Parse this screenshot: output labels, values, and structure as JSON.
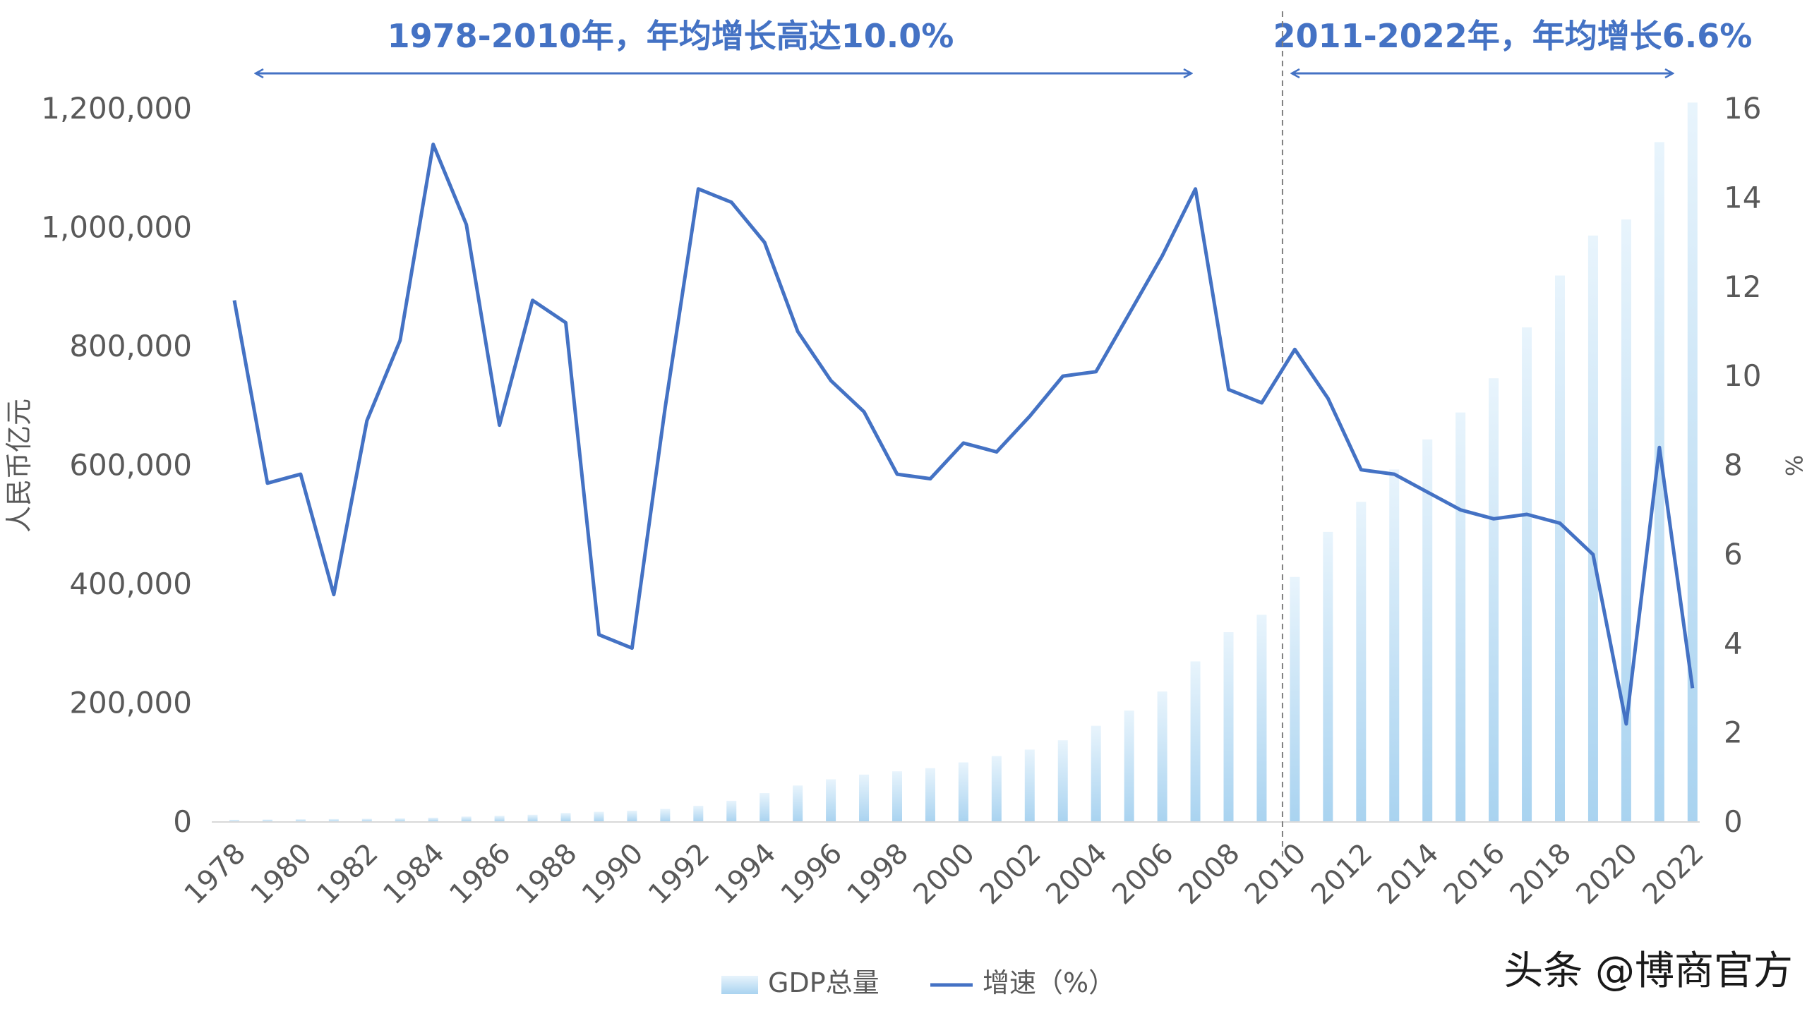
{
  "annotations": {
    "left": "1978-2010年，年均增长高达10.0%",
    "right": "2011-2022年，年均增长6.6%"
  },
  "watermark": "头条 @博商官方",
  "colors": {
    "line": "#4472c4",
    "bar_top": "#d6eaf8",
    "bar_bottom": "#a9d3f0",
    "annotation": "#4472c4",
    "divider": "#7f7f7f",
    "text": "#595959"
  },
  "chart_data": {
    "type": "bar+line",
    "categories": [
      "1978",
      "1979",
      "1980",
      "1981",
      "1982",
      "1983",
      "1984",
      "1985",
      "1986",
      "1987",
      "1988",
      "1989",
      "1990",
      "1991",
      "1992",
      "1993",
      "1994",
      "1995",
      "1996",
      "1997",
      "1998",
      "1999",
      "2000",
      "2001",
      "2002",
      "2003",
      "2004",
      "2005",
      "2006",
      "2007",
      "2008",
      "2009",
      "2010",
      "2011",
      "2012",
      "2013",
      "2014",
      "2015",
      "2016",
      "2017",
      "2018",
      "2019",
      "2020",
      "2021",
      "2022"
    ],
    "x_tick_labels": [
      "1978",
      "1980",
      "1982",
      "1984",
      "1986",
      "1988",
      "1990",
      "1992",
      "1994",
      "1996",
      "1998",
      "2000",
      "2002",
      "2004",
      "2006",
      "2008",
      "2010",
      "2012",
      "2014",
      "2016",
      "2018",
      "2020",
      "2022"
    ],
    "series": [
      {
        "name": "GDP总量",
        "type": "bar",
        "axis": "left",
        "values": [
          3679,
          4101,
          4588,
          4936,
          5373,
          6021,
          7279,
          9099,
          10376,
          12175,
          15180,
          17180,
          18873,
          22006,
          27195,
          35673,
          48638,
          61340,
          71814,
          79715,
          85196,
          90564,
          100280,
          110863,
          121717,
          137422,
          161840,
          187319,
          219438,
          270092,
          319245,
          348518,
          412119,
          487940,
          538580,
          592963,
          643563,
          688858,
          746395,
          832036,
          919281,
          986515,
          1013567,
          1143670,
          1210207
        ]
      },
      {
        "name": "增速（%）",
        "type": "line",
        "axis": "right",
        "values": [
          11.7,
          7.6,
          7.8,
          5.1,
          9.0,
          10.8,
          15.2,
          13.4,
          8.9,
          11.7,
          11.2,
          4.2,
          3.9,
          9.3,
          14.2,
          13.9,
          13.0,
          11.0,
          9.9,
          9.2,
          7.8,
          7.7,
          8.5,
          8.3,
          9.1,
          10.0,
          10.1,
          11.4,
          12.7,
          14.2,
          9.7,
          9.4,
          10.6,
          9.5,
          7.9,
          7.8,
          7.4,
          7.0,
          6.8,
          6.9,
          6.7,
          6.0,
          2.2,
          8.4,
          3.0
        ]
      }
    ],
    "y_left": {
      "label": "人民币亿元",
      "ticks": [
        "0",
        "200,000",
        "400,000",
        "600,000",
        "800,000",
        "1,000,000",
        "1,200,000"
      ],
      "ylim": [
        0,
        1200000
      ]
    },
    "y_right": {
      "label": "%",
      "ticks": [
        "0",
        "2",
        "4",
        "6",
        "8",
        "10",
        "12",
        "14",
        "16"
      ],
      "ylim": [
        0,
        16
      ]
    },
    "divider_between": [
      "2009",
      "2010"
    ],
    "legend": [
      "GDP总量",
      "增速（%）"
    ],
    "legend_position": "bottom"
  }
}
